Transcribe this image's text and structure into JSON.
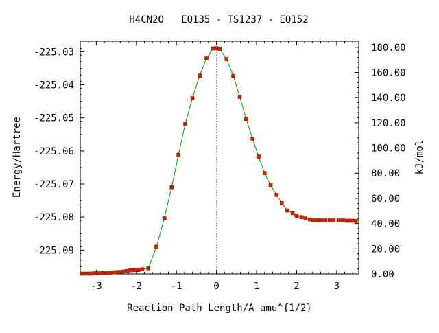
{
  "chart_data": {
    "type": "line",
    "title": "H4CN2O   EQ135 - TS1237 - EQ152",
    "xlabel": "Reaction Path Length/A amu^{1/2}",
    "ylabel": "Energy/Hartree",
    "y2label": "kJ/mol",
    "xlim": [
      -3.4,
      3.55
    ],
    "ylim": [
      -225.0972,
      -225.0268
    ],
    "y2lim": [
      0,
      184.8
    ],
    "x_ticks": [
      "-3",
      "-2",
      "-1",
      "0",
      "1",
      "2",
      "3"
    ],
    "x_tick_values": [
      -3,
      -2,
      -1,
      0,
      1,
      2,
      3
    ],
    "y_ticks": [
      "-225.03",
      "-225.04",
      "-225.05",
      "-225.06",
      "-225.07",
      "-225.08",
      "-225.09"
    ],
    "y_tick_values": [
      -225.03,
      -225.04,
      -225.05,
      -225.06,
      -225.07,
      -225.08,
      -225.09
    ],
    "y2_ticks": [
      "180.00",
      "160.00",
      "140.00",
      "120.00",
      "100.00",
      "80.00",
      "60.00",
      "40.00",
      "20.00",
      "0.00"
    ],
    "y2_tick_values": [
      180,
      160,
      140,
      120,
      100,
      80,
      60,
      40,
      20,
      0
    ],
    "ts_x": 0,
    "line_color": "#00a000",
    "point_color": "#cc2200",
    "point_outline": "#8a1a00",
    "ts_line_color": "#999999",
    "series": [
      {
        "x": [
          -3.35,
          -3.25,
          -3.15,
          -3.05,
          -2.95,
          -2.85,
          -2.75,
          -2.65,
          -2.55,
          -2.45,
          -2.35,
          -2.25,
          -2.15,
          -2.05,
          -1.95,
          -1.85,
          -1.7,
          -1.5,
          -1.3,
          -1.12,
          -0.95,
          -0.78,
          -0.6,
          -0.42,
          -0.25,
          -0.08,
          0.0,
          0.08,
          0.25,
          0.42,
          0.58,
          0.74,
          0.9,
          1.05,
          1.2,
          1.35,
          1.5,
          1.63,
          1.77,
          1.9,
          2.0,
          2.12,
          2.22,
          2.33,
          2.42,
          2.52,
          2.6,
          2.7,
          2.82,
          2.92,
          3.05,
          3.15,
          3.25,
          3.32,
          3.4,
          3.48
        ],
        "y": [
          -225.0971,
          -225.0971,
          -225.0971,
          -225.097,
          -225.097,
          -225.0969,
          -225.0969,
          -225.0968,
          -225.0967,
          -225.0966,
          -225.0965,
          -225.0963,
          -225.0961,
          -225.096,
          -225.096,
          -225.0958,
          -225.0955,
          -225.089,
          -225.0803,
          -225.071,
          -225.0612,
          -225.0518,
          -225.044,
          -225.0372,
          -225.032,
          -225.029,
          -225.0289,
          -225.0292,
          -225.0322,
          -225.0373,
          -225.0436,
          -225.0503,
          -225.0563,
          -225.0617,
          -225.0667,
          -225.0704,
          -225.0733,
          -225.0758,
          -225.078,
          -225.0788,
          -225.0796,
          -225.08,
          -225.0804,
          -225.0807,
          -225.081,
          -225.081,
          -225.081,
          -225.081,
          -225.081,
          -225.081,
          -225.081,
          -225.081,
          -225.0811,
          -225.0811,
          -225.0811,
          -225.0812
        ]
      }
    ]
  }
}
